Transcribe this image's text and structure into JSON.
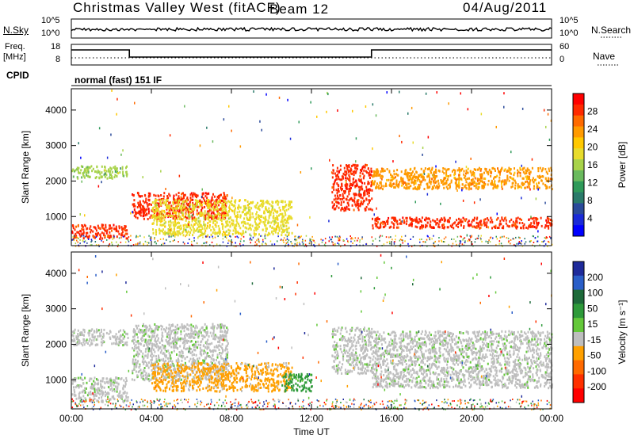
{
  "header": {
    "station": "Christmas Valley West (fitACF)",
    "beam": "Beam 12",
    "date": "04/Aug/2011"
  },
  "strip1": {
    "left_label": "N.Sky",
    "right_label": "N.Search",
    "left_ticks": [
      "10^5",
      "10^0"
    ],
    "right_ticks": [
      "10^5",
      "10^0"
    ]
  },
  "strip2": {
    "left_label_1": "Freq.",
    "left_label_2": "[MHz]",
    "right_label": "Nave",
    "left_ticks": [
      "18",
      "8"
    ],
    "right_ticks": [
      "60",
      "0"
    ]
  },
  "cpid": {
    "label": "CPID",
    "text": "normal (fast) 151 IF"
  },
  "colorbars": {
    "power": {
      "title": "Power [dB]",
      "ticks": [
        "28",
        "24",
        "20",
        "16",
        "12",
        "8",
        "4"
      ],
      "colors": [
        "#ff0000",
        "#ff2a00",
        "#ff6a00",
        "#ff9a00",
        "#ffc800",
        "#e8dc2c",
        "#a8d34a",
        "#6aba5e",
        "#2f9a5a",
        "#2a7a6a",
        "#2a4a9a",
        "#1a2ad8",
        "#0000ff"
      ]
    },
    "velocity": {
      "title": "Velocity [m s⁻¹]",
      "ticks": [
        "200",
        "100",
        "50",
        "15",
        "-15",
        "-50",
        "-100",
        "-200"
      ],
      "colors": [
        "#1e2a9a",
        "#2a5ec8",
        "#1e6a3a",
        "#2e9a3a",
        "#64c83a",
        "#bebebe",
        "#ffa000",
        "#ff6a00",
        "#ff3000",
        "#ff0000"
      ]
    }
  },
  "chart_data": [
    {
      "type": "heatmap",
      "title": "",
      "xlabel": "Time UT",
      "ylabel": "Slant Range [km]",
      "xlim": [
        "00:00",
        "24:00"
      ],
      "ylim": [
        180,
        4600
      ],
      "x_ticks": [
        "00:00",
        "04:00",
        "08:00",
        "12:00",
        "16:00",
        "20:00",
        "00:00"
      ],
      "y_ticks": [
        "1000",
        "2000",
        "3000",
        "4000"
      ],
      "colorbar": "Power [dB]",
      "clim": [
        0,
        30
      ],
      "features": [
        {
          "t_start_h": 0.0,
          "t_end_h": 2.8,
          "range_km": [
            2100,
            2450
          ],
          "value": 14
        },
        {
          "t_start_h": 0.0,
          "t_end_h": 2.8,
          "range_km": [
            400,
            800
          ],
          "value": 26
        },
        {
          "t_start_h": 3.0,
          "t_end_h": 7.8,
          "range_km": [
            950,
            1700
          ],
          "value": 27
        },
        {
          "t_start_h": 4.0,
          "t_end_h": 11.0,
          "range_km": [
            500,
            1500
          ],
          "value": 18
        },
        {
          "t_start_h": 13.0,
          "t_end_h": 15.0,
          "range_km": [
            1200,
            2500
          ],
          "value": 27
        },
        {
          "t_start_h": 15.0,
          "t_end_h": 24.0,
          "range_km": [
            700,
            1000
          ],
          "value": 26
        },
        {
          "t_start_h": 15.0,
          "t_end_h": 24.0,
          "range_km": [
            1800,
            2400
          ],
          "value": 22
        }
      ]
    },
    {
      "type": "heatmap",
      "title": "",
      "xlabel": "Time UT",
      "ylabel": "Slant Range [km]",
      "xlim": [
        "00:00",
        "24:00"
      ],
      "ylim": [
        180,
        4600
      ],
      "x_ticks": [
        "00:00",
        "04:00",
        "08:00",
        "12:00",
        "16:00",
        "20:00",
        "00:00"
      ],
      "y_ticks": [
        "1000",
        "2000",
        "3000",
        "4000"
      ],
      "colorbar": "Velocity [m s⁻¹]",
      "clim": [
        -200,
        200
      ],
      "features": [
        {
          "t_start_h": 0.0,
          "t_end_h": 2.8,
          "range_km": [
            2000,
            2450
          ],
          "value": 0
        },
        {
          "t_start_h": 0.0,
          "t_end_h": 2.8,
          "range_km": [
            400,
            1100
          ],
          "value": 0
        },
        {
          "t_start_h": 3.0,
          "t_end_h": 7.8,
          "range_km": [
            1000,
            2600
          ],
          "value": 0
        },
        {
          "t_start_h": 4.0,
          "t_end_h": 11.0,
          "range_km": [
            700,
            1500
          ],
          "value": -40
        },
        {
          "t_start_h": 10.5,
          "t_end_h": 12.0,
          "range_km": [
            700,
            1200
          ],
          "value": 50
        },
        {
          "t_start_h": 13.0,
          "t_end_h": 15.0,
          "range_km": [
            1200,
            2500
          ],
          "value": 0
        },
        {
          "t_start_h": 15.0,
          "t_end_h": 24.0,
          "range_km": [
            800,
            2400
          ],
          "value": 0
        }
      ]
    }
  ]
}
